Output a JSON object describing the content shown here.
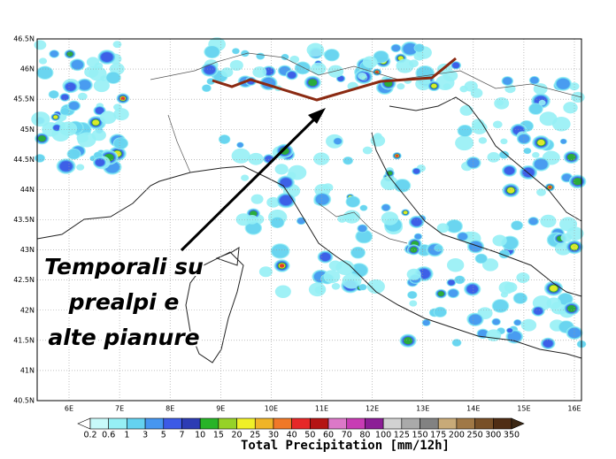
{
  "map": {
    "lat_labels": [
      "46.5N",
      "46N",
      "45.5N",
      "45N",
      "44.5N",
      "44N",
      "43.5N",
      "43N",
      "42.5N",
      "42N",
      "41.5N",
      "41N",
      "40.5N"
    ],
    "lon_labels": [
      "6E",
      "7E",
      "8E",
      "9E",
      "10E",
      "11E",
      "12E",
      "13E",
      "14E",
      "15E",
      "16E"
    ]
  },
  "annotation": {
    "lines": [
      "Temporali su",
      "prealpi e",
      "alte pianure"
    ]
  },
  "colorbar": {
    "title": "Total Precipitation [mm/12h]",
    "labels": [
      0.2,
      0.6,
      1,
      3,
      5,
      7,
      10,
      15,
      20,
      25,
      30,
      40,
      50,
      60,
      70,
      80,
      100,
      125,
      150,
      175,
      200,
      250,
      300,
      350
    ],
    "colors": [
      "#ffffff",
      "#c8fafa",
      "#96f0f5",
      "#64d2f0",
      "#4696f0",
      "#3c5ae6",
      "#2d3cb4",
      "#28b428",
      "#96d228",
      "#f0f028",
      "#f0b428",
      "#f07828",
      "#e62828",
      "#b41414",
      "#dc78c8",
      "#c83cb4",
      "#8c1e96",
      "#d2d2d2",
      "#aaaaaa",
      "#828282",
      "#c8aa78",
      "#a07846",
      "#785028",
      "#502d14",
      "#3c2814"
    ]
  }
}
